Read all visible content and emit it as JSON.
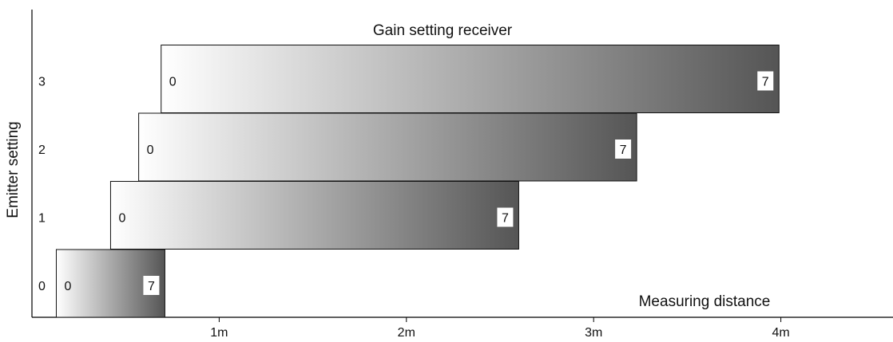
{
  "chart_data": {
    "type": "bar",
    "orientation": "horizontal-range",
    "title": "Gain setting receiver",
    "xlabel": "Measuring distance",
    "ylabel": "Emitter setting",
    "xlim": [
      0,
      4.5
    ],
    "x_ticks": [
      {
        "value": 1,
        "label": "1m"
      },
      {
        "value": 2,
        "label": "2m"
      },
      {
        "value": 3,
        "label": "3m"
      },
      {
        "value": 4,
        "label": "4m"
      }
    ],
    "categories": [
      "0",
      "1",
      "2",
      "3"
    ],
    "bars": [
      {
        "emitter": "0",
        "start": 0.13,
        "end": 0.71,
        "low_label": "0",
        "high_label": "7"
      },
      {
        "emitter": "1",
        "start": 0.42,
        "end": 2.6,
        "low_label": "0",
        "high_label": "7"
      },
      {
        "emitter": "2",
        "start": 0.57,
        "end": 3.23,
        "low_label": "0",
        "high_label": "7"
      },
      {
        "emitter": "3",
        "start": 0.69,
        "end": 3.99,
        "low_label": "0",
        "high_label": "7"
      }
    ],
    "grid": false,
    "colors": {
      "gradient_start": "#ffffff",
      "gradient_end": "#555555",
      "axis": "#000000"
    }
  }
}
